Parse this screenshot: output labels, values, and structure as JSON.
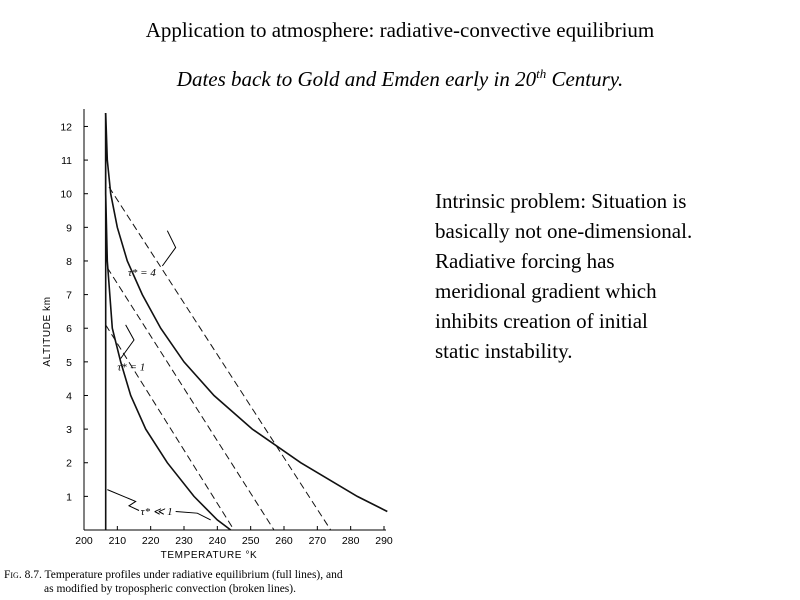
{
  "slide": {
    "title": "Application to atmosphere: radiative-convective equilibrium",
    "subtitle_main": "Dates back to Gold and Emden early in 20",
    "subtitle_sup": "th",
    "subtitle_end": " Century.",
    "note_lines": [
      "Intrinsic problem:  Situation is",
      "basically not one-dimensional.",
      "Radiative forcing has",
      "meridional gradient which",
      "inhibits creation of initial",
      "static instability."
    ],
    "caption": {
      "fig_label": "Fig. 8.7.",
      "line1": " Temperature profiles under radiative equilibrium (full lines), and",
      "line2": "as modified by tropospheric convection (broken lines)."
    }
  },
  "chart_data": {
    "type": "line",
    "xlabel": "TEMPERATURE  °K",
    "ylabel": "ALTITUDE   km",
    "xlim": [
      200,
      290
    ],
    "ylim": [
      0,
      12.4
    ],
    "x_ticks": [
      200,
      210,
      220,
      230,
      240,
      250,
      260,
      270,
      280,
      290
    ],
    "y_ticks": [
      1,
      2,
      3,
      4,
      5,
      6,
      7,
      8,
      9,
      10,
      11,
      12
    ],
    "labels": {
      "tau4": "τ* = 4",
      "tau1": "τ* = 1",
      "tau_small": "τ* ≪ 1"
    },
    "series": [
      {
        "label_key": "tau4",
        "style": "solid",
        "points": [
          [
            206.5,
            12.4
          ],
          [
            207,
            11
          ],
          [
            208,
            10
          ],
          [
            210,
            9
          ],
          [
            213,
            8
          ],
          [
            217.5,
            7
          ],
          [
            223,
            6
          ],
          [
            230,
            5
          ],
          [
            239,
            4
          ],
          [
            250.5,
            3
          ],
          [
            265,
            2
          ],
          [
            282,
            1
          ],
          [
            291,
            0.55
          ]
        ]
      },
      {
        "label_key": "tau4",
        "style": "dashed",
        "points": [
          [
            207.5,
            10.2
          ],
          [
            274,
            0
          ]
        ]
      },
      {
        "label_key": "tau1",
        "style": "solid",
        "points": [
          [
            206.5,
            12.4
          ],
          [
            206.5,
            10
          ],
          [
            207,
            8
          ],
          [
            208.5,
            6
          ],
          [
            211,
            5
          ],
          [
            214,
            4
          ],
          [
            218.5,
            3
          ],
          [
            225,
            2
          ],
          [
            233,
            1
          ],
          [
            240,
            0.3
          ],
          [
            244,
            0
          ]
        ]
      },
      {
        "label_key": "tau1",
        "style": "dashed",
        "points": [
          [
            207,
            7.8
          ],
          [
            257,
            0
          ]
        ]
      },
      {
        "label_key": "tau_small",
        "style": "solid",
        "points": [
          [
            206.5,
            12.4
          ],
          [
            206.5,
            0
          ]
        ]
      },
      {
        "label_key": "tau_small",
        "style": "dashed",
        "points": [
          [
            206.5,
            6.1
          ],
          [
            245,
            0
          ]
        ]
      }
    ]
  }
}
